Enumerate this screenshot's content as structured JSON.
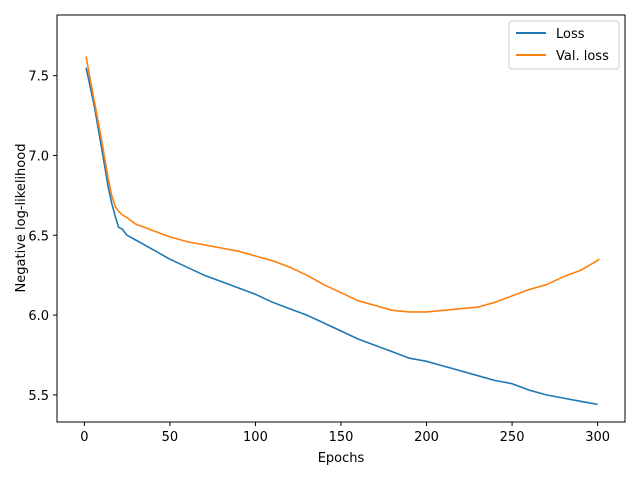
{
  "chart_data": {
    "type": "line",
    "title": "",
    "xlabel": "Epochs",
    "ylabel": "Negative log-likelihood",
    "xlim": [
      -16,
      316
    ],
    "ylim": [
      5.33,
      7.88
    ],
    "x_ticks": [
      0,
      50,
      100,
      150,
      200,
      250,
      300
    ],
    "x_tick_labels": [
      "0",
      "50",
      "100",
      "150",
      "200",
      "250",
      "300"
    ],
    "y_ticks": [
      5.5,
      6.0,
      6.5,
      7.0,
      7.5
    ],
    "y_tick_labels": [
      "5.5",
      "6.0",
      "6.5",
      "7.0",
      "7.5"
    ],
    "grid": false,
    "legend_position": "top-right",
    "series": [
      {
        "name": "Loss",
        "color": "#1f77b4",
        "x": [
          1,
          3,
          6,
          10,
          14,
          16,
          18,
          20,
          22,
          25,
          30,
          35,
          40,
          45,
          50,
          60,
          70,
          80,
          90,
          100,
          110,
          120,
          130,
          140,
          150,
          160,
          170,
          180,
          190,
          200,
          210,
          220,
          230,
          240,
          250,
          260,
          270,
          280,
          290,
          300
        ],
        "values": [
          7.55,
          7.45,
          7.3,
          7.05,
          6.8,
          6.7,
          6.62,
          6.55,
          6.54,
          6.5,
          6.47,
          6.44,
          6.41,
          6.38,
          6.35,
          6.3,
          6.25,
          6.21,
          6.17,
          6.13,
          6.08,
          6.04,
          6.0,
          5.95,
          5.9,
          5.85,
          5.81,
          5.77,
          5.73,
          5.71,
          5.68,
          5.65,
          5.62,
          5.59,
          5.57,
          5.53,
          5.5,
          5.48,
          5.46,
          5.44
        ]
      },
      {
        "name": "Val. loss",
        "color": "#ff7f0e",
        "x": [
          1,
          3,
          6,
          10,
          14,
          16,
          18,
          20,
          22,
          25,
          30,
          35,
          40,
          45,
          50,
          60,
          70,
          80,
          90,
          100,
          110,
          120,
          130,
          140,
          150,
          160,
          170,
          180,
          190,
          200,
          210,
          220,
          230,
          240,
          250,
          260,
          270,
          280,
          290,
          298,
          301
        ],
        "values": [
          7.62,
          7.5,
          7.33,
          7.1,
          6.85,
          6.75,
          6.68,
          6.65,
          6.63,
          6.61,
          6.57,
          6.55,
          6.53,
          6.51,
          6.49,
          6.46,
          6.44,
          6.42,
          6.4,
          6.37,
          6.34,
          6.3,
          6.25,
          6.19,
          6.14,
          6.09,
          6.06,
          6.03,
          6.02,
          6.02,
          6.03,
          6.04,
          6.05,
          6.08,
          6.12,
          6.16,
          6.19,
          6.24,
          6.28,
          6.33,
          6.35
        ]
      }
    ]
  }
}
